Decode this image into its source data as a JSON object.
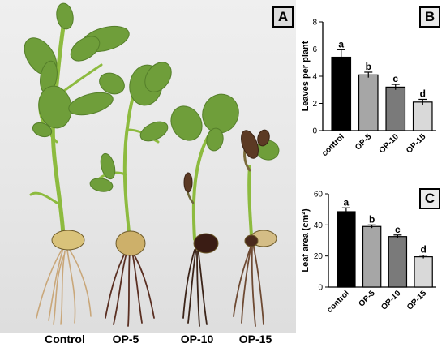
{
  "panel_a": {
    "letter": "A",
    "plant_labels": [
      "Control",
      "OP-5",
      "OP-10",
      "OP-15"
    ]
  },
  "chart_data": [
    {
      "type": "bar",
      "panel_letter": "B",
      "categories": [
        "control",
        "OP-5",
        "OP-10",
        "OP-15"
      ],
      "values": [
        5.4,
        4.1,
        3.2,
        2.1
      ],
      "errors": [
        0.55,
        0.2,
        0.2,
        0.2
      ],
      "significance": [
        "a",
        "b",
        "c",
        "d"
      ],
      "bar_colors": [
        "#000000",
        "#a6a6a6",
        "#7a7a7a",
        "#d9d9d9"
      ],
      "ylabel": "Leaves per plant",
      "ylim": [
        0,
        8
      ],
      "yticks": [
        0,
        2,
        4,
        6,
        8
      ]
    },
    {
      "type": "bar",
      "panel_letter": "C",
      "categories": [
        "control",
        "OP-5",
        "OP-10",
        "OP-15"
      ],
      "values": [
        48.5,
        39,
        32.5,
        19.5
      ],
      "errors": [
        2.5,
        1.0,
        1.0,
        1.0
      ],
      "significance": [
        "a",
        "b",
        "c",
        "d"
      ],
      "bar_colors": [
        "#000000",
        "#a6a6a6",
        "#7a7a7a",
        "#d9d9d9"
      ],
      "ylabel": "Leaf area (cm²)",
      "ylim": [
        0,
        60
      ],
      "yticks": [
        0,
        20,
        40,
        60
      ]
    }
  ]
}
